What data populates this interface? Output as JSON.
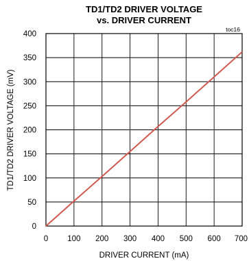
{
  "chart_data": {
    "type": "line",
    "title_line1": "TD1/TD2 DRIVER VOLTAGE",
    "title_line2": "vs. DRIVER CURRENT",
    "tag": "toc16",
    "xlabel": "DRIVER CURRENT (mA)",
    "ylabel": "TD1/TD2 DRIVER VOLTAGE (mV)",
    "xlim": [
      0,
      700
    ],
    "ylim": [
      0,
      400
    ],
    "x_ticks": [
      0,
      100,
      200,
      300,
      400,
      500,
      600,
      700
    ],
    "y_ticks": [
      0,
      50,
      100,
      150,
      200,
      250,
      300,
      350,
      400
    ],
    "grid": true,
    "series": [
      {
        "color": "#d0584f",
        "x": [
          0,
          100,
          200,
          300,
          400,
          500,
          600,
          700
        ],
        "y": [
          0,
          52,
          103,
          155,
          207,
          258,
          310,
          362
        ]
      }
    ]
  }
}
